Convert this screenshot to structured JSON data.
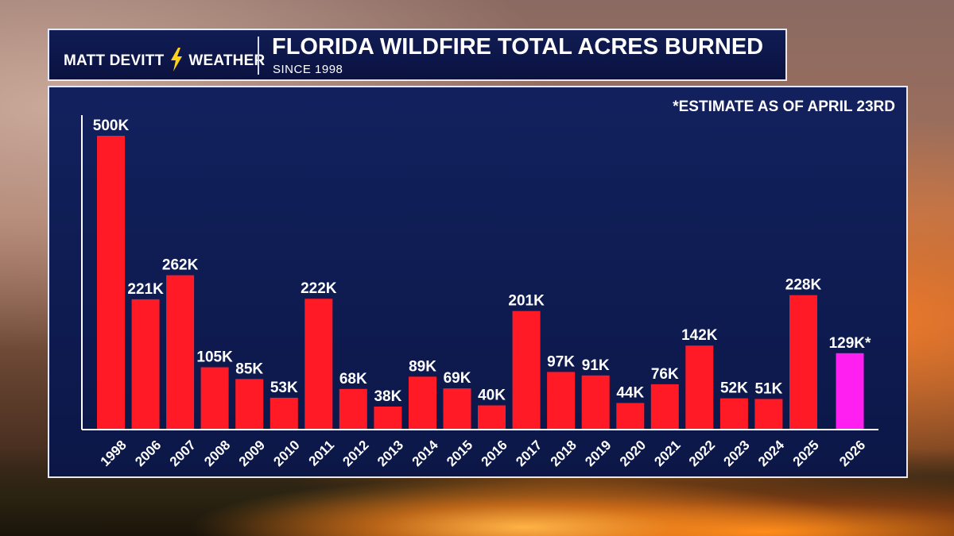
{
  "header": {
    "brand_left": "MATT DEVITT",
    "brand_right": "WEATHER",
    "title": "FLORIDA WILDFIRE TOTAL ACRES BURNED",
    "subtitle": "SINCE 1998"
  },
  "note": "*ESTIMATE AS OF APRIL 23RD",
  "colors": {
    "bar": "#ff1a26",
    "estimate_bar": "#ff1ff0",
    "panel": "#0e1a50",
    "bolt": "#ffd21a"
  },
  "chart_data": {
    "type": "bar",
    "title": "FLORIDA WILDFIRE TOTAL ACRES BURNED",
    "subtitle": "SINCE 1998",
    "xlabel": "",
    "ylabel": "",
    "ylim": [
      0,
      500000
    ],
    "grid": false,
    "categories": [
      "1998",
      "2006",
      "2007",
      "2008",
      "2009",
      "2010",
      "2011",
      "2012",
      "2013",
      "2014",
      "2015",
      "2016",
      "2017",
      "2018",
      "2019",
      "2020",
      "2021",
      "2022",
      "2023",
      "2024",
      "2025",
      "2026"
    ],
    "values": [
      500000,
      221000,
      262000,
      105000,
      85000,
      53000,
      222000,
      68000,
      38000,
      89000,
      69000,
      40000,
      201000,
      97000,
      91000,
      44000,
      76000,
      142000,
      52000,
      51000,
      228000,
      129000
    ],
    "labels": [
      "500K",
      "221K",
      "262K",
      "105K",
      "85K",
      "53K",
      "222K",
      "68K",
      "38K",
      "89K",
      "69K",
      "40K",
      "201K",
      "97K",
      "91K",
      "44K",
      "76K",
      "142K",
      "52K",
      "51K",
      "228K",
      "129K*"
    ],
    "estimate": [
      false,
      false,
      false,
      false,
      false,
      false,
      false,
      false,
      false,
      false,
      false,
      false,
      false,
      false,
      false,
      false,
      false,
      false,
      false,
      false,
      false,
      true
    ]
  }
}
